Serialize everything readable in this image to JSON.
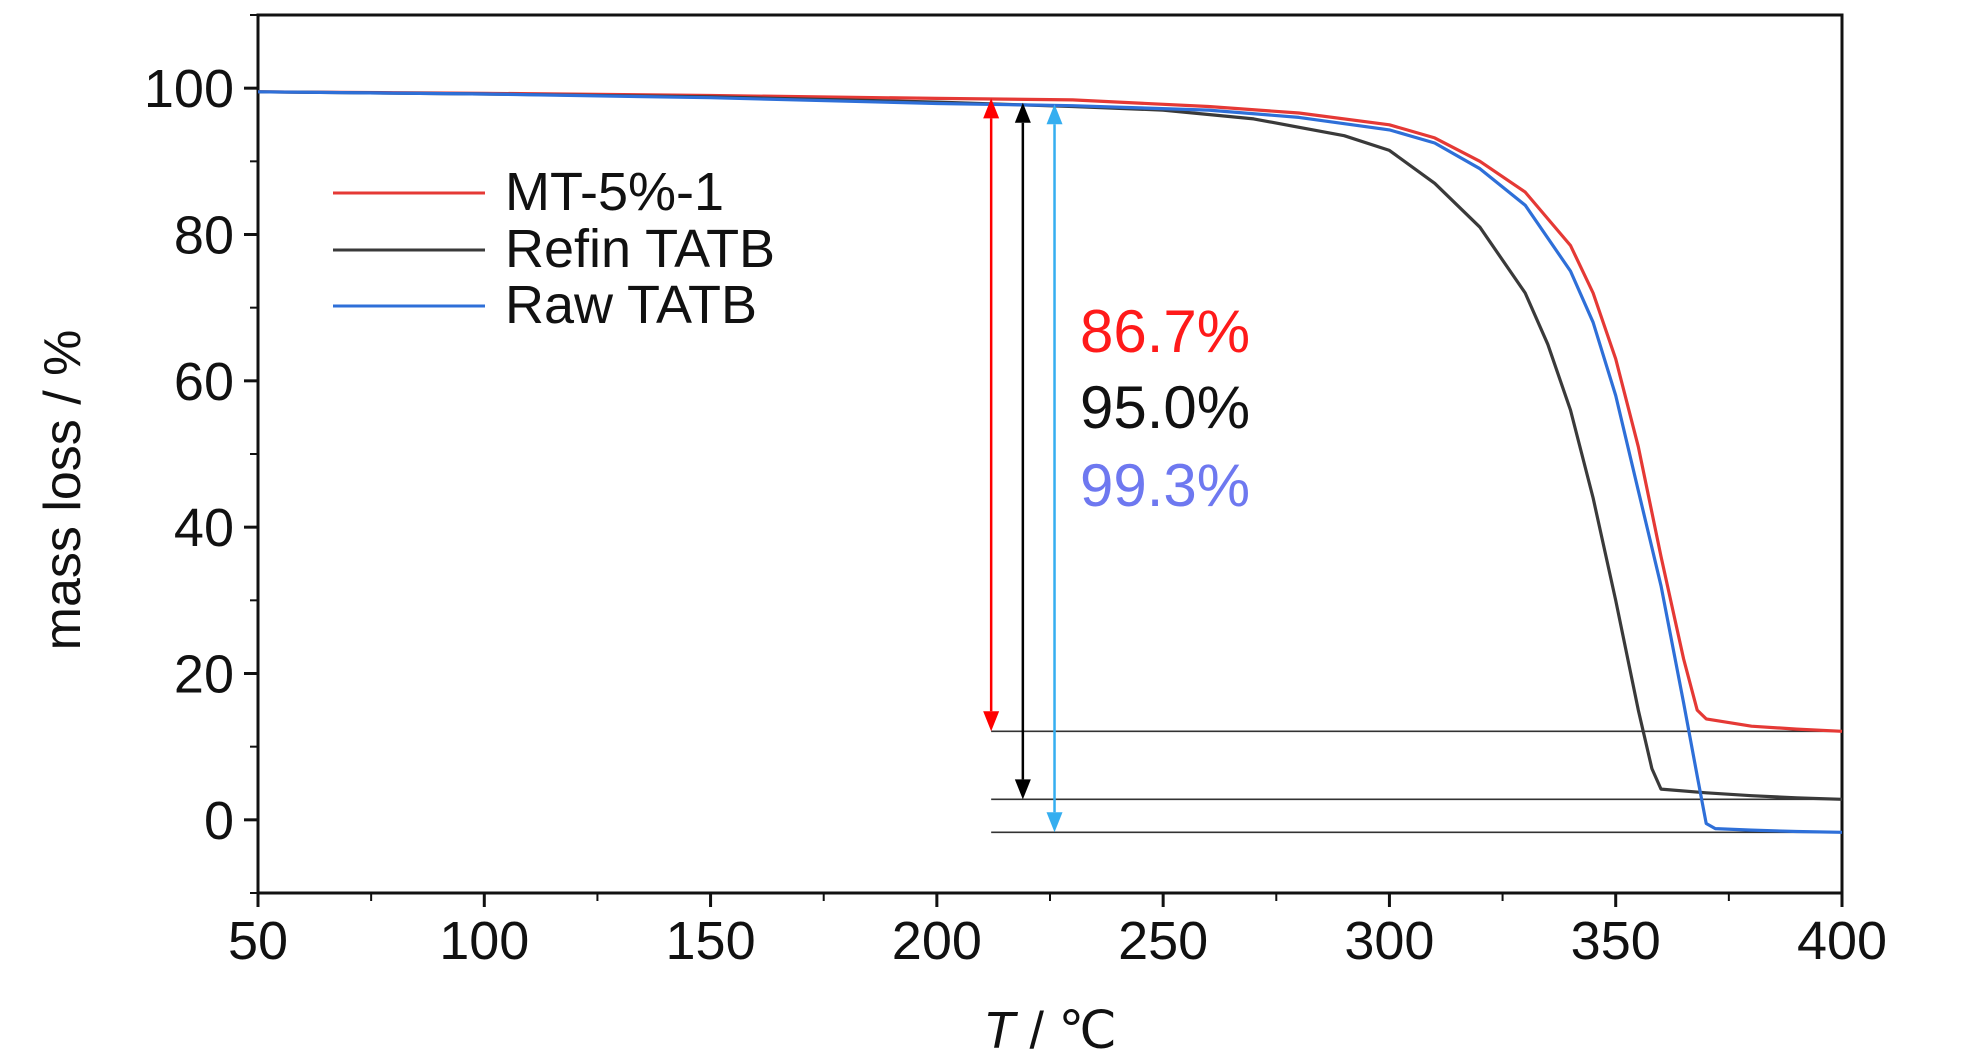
{
  "chart_data": {
    "type": "line",
    "xlabel_var": "T",
    "xlabel_unit": " / ℃",
    "ylabel": "mass loss / %",
    "xlim": [
      50,
      400
    ],
    "ylim": [
      -10,
      110
    ],
    "xticks": [
      50,
      100,
      150,
      200,
      250,
      300,
      350,
      400
    ],
    "yticks": [
      0,
      20,
      40,
      60,
      80,
      100
    ],
    "grid": false,
    "legend_position": "upper-left",
    "series": [
      {
        "name": "MT-5%-1",
        "color": "#e53935",
        "points": [
          [
            50,
            99.5
          ],
          [
            100,
            99.3
          ],
          [
            150,
            99
          ],
          [
            200,
            98.6
          ],
          [
            230,
            98.4
          ],
          [
            260,
            97.5
          ],
          [
            280,
            96.6
          ],
          [
            300,
            95
          ],
          [
            310,
            93.2
          ],
          [
            320,
            90
          ],
          [
            330,
            85.8
          ],
          [
            340,
            78.5
          ],
          [
            345,
            72
          ],
          [
            350,
            63
          ],
          [
            355,
            51
          ],
          [
            360,
            36
          ],
          [
            365,
            22
          ],
          [
            368,
            15
          ],
          [
            370,
            13.8
          ],
          [
            380,
            12.8
          ],
          [
            390,
            12.4
          ],
          [
            400,
            12.1
          ]
        ]
      },
      {
        "name": "Refin TATB",
        "color": "#3a3a3a",
        "points": [
          [
            50,
            99.5
          ],
          [
            100,
            99.2
          ],
          [
            150,
            98.8
          ],
          [
            200,
            98.1
          ],
          [
            230,
            97.5
          ],
          [
            250,
            97
          ],
          [
            270,
            95.8
          ],
          [
            290,
            93.5
          ],
          [
            300,
            91.5
          ],
          [
            310,
            87
          ],
          [
            320,
            81
          ],
          [
            330,
            72
          ],
          [
            335,
            65
          ],
          [
            340,
            56
          ],
          [
            345,
            44
          ],
          [
            350,
            30
          ],
          [
            355,
            15
          ],
          [
            358,
            7
          ],
          [
            360,
            4.2
          ],
          [
            370,
            3.7
          ],
          [
            380,
            3.3
          ],
          [
            390,
            3
          ],
          [
            400,
            2.8
          ]
        ]
      },
      {
        "name": "Raw TATB",
        "color": "#2e6fd8",
        "points": [
          [
            50,
            99.5
          ],
          [
            100,
            99.2
          ],
          [
            150,
            98.7
          ],
          [
            200,
            97.9
          ],
          [
            230,
            97.6
          ],
          [
            260,
            97
          ],
          [
            280,
            96
          ],
          [
            300,
            94.3
          ],
          [
            310,
            92.5
          ],
          [
            320,
            89
          ],
          [
            330,
            84
          ],
          [
            340,
            75
          ],
          [
            345,
            68
          ],
          [
            350,
            58
          ],
          [
            355,
            45
          ],
          [
            360,
            32
          ],
          [
            365,
            16
          ],
          [
            368,
            6
          ],
          [
            370,
            -0.5
          ],
          [
            372,
            -1.2
          ],
          [
            380,
            -1.4
          ],
          [
            390,
            -1.6
          ],
          [
            400,
            -1.7
          ]
        ]
      }
    ],
    "reference_lines": [
      {
        "color": "#333333",
        "x_start": 212,
        "x_end": 400,
        "y": 12.1
      },
      {
        "color": "#333333",
        "x_start": 212,
        "x_end": 400,
        "y": 2.8
      },
      {
        "color": "#333333",
        "x_start": 212,
        "x_end": 400,
        "y": -1.7
      }
    ],
    "arrows": [
      {
        "color": "#ff0000",
        "x": 212,
        "y_top": 98.6,
        "y_bottom": 12.1
      },
      {
        "color": "#000000",
        "x": 219,
        "y_top": 98.0,
        "y_bottom": 2.8
      },
      {
        "color": "#35aef0",
        "x": 226,
        "y_top": 97.8,
        "y_bottom": -1.7
      }
    ],
    "annotations": [
      {
        "text": "86.7%",
        "color": "#ff1a1a"
      },
      {
        "text": "95.0%",
        "color": "#111111"
      },
      {
        "text": "99.3%",
        "color": "#6e78f0"
      }
    ]
  }
}
